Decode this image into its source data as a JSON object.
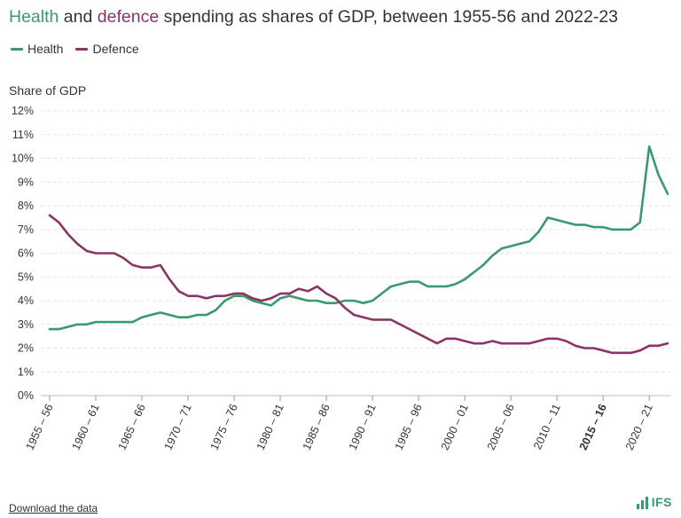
{
  "title": {
    "health_word": "Health",
    "and_word": "and",
    "defence_word": "defence",
    "rest": "spending as shares of GDP, between 1955-56 and 2022-23"
  },
  "legend": [
    {
      "label": "Health",
      "color": "#3a9a6e"
    },
    {
      "label": "Defence",
      "color": "#8b3566"
    }
  ],
  "download_label": "Download the data",
  "logo_text": "IFS",
  "chart_data": {
    "type": "line",
    "title": "Health and defence spending as shares of GDP, between 1955-56 and 2022-23",
    "xlabel": "",
    "ylabel": "Share of GDP",
    "ylim": [
      0,
      12
    ],
    "yticks": [
      "0%",
      "1%",
      "2%",
      "3%",
      "4%",
      "5%",
      "6%",
      "7%",
      "8%",
      "9%",
      "10%",
      "11%",
      "12%"
    ],
    "grid": true,
    "legend_position": "top-left",
    "x_start_year": 1955,
    "x_tick_labels": [
      "1955 – 56",
      "1960 – 61",
      "1965 – 66",
      "1970 – 71",
      "1975 – 76",
      "1980 – 81",
      "1985 – 86",
      "1990 – 91",
      "1995 – 96",
      "2000 – 01",
      "2005 – 06",
      "2010 – 11",
      "2015 – 16",
      "2020 – 21"
    ],
    "x_tick_bold": "2015 – 16",
    "series": [
      {
        "name": "Health",
        "color": "#3a9a6e",
        "values": [
          2.8,
          2.8,
          2.9,
          3.0,
          3.0,
          3.1,
          3.1,
          3.1,
          3.1,
          3.1,
          3.3,
          3.4,
          3.5,
          3.4,
          3.3,
          3.3,
          3.4,
          3.4,
          3.6,
          4.0,
          4.2,
          4.2,
          4.0,
          3.9,
          3.8,
          4.1,
          4.2,
          4.1,
          4.0,
          4.0,
          3.9,
          3.9,
          4.0,
          4.0,
          3.9,
          4.0,
          4.3,
          4.6,
          4.7,
          4.8,
          4.8,
          4.6,
          4.6,
          4.6,
          4.7,
          4.9,
          5.2,
          5.5,
          5.9,
          6.2,
          6.3,
          6.4,
          6.5,
          6.9,
          7.5,
          7.4,
          7.3,
          7.2,
          7.2,
          7.1,
          7.1,
          7.0,
          7.0,
          7.0,
          7.3,
          10.5,
          9.3,
          8.5
        ]
      },
      {
        "name": "Defence",
        "color": "#8b3566",
        "values": [
          7.6,
          7.3,
          6.8,
          6.4,
          6.1,
          6.0,
          6.0,
          6.0,
          5.8,
          5.5,
          5.4,
          5.4,
          5.5,
          4.9,
          4.4,
          4.2,
          4.2,
          4.1,
          4.2,
          4.2,
          4.3,
          4.3,
          4.1,
          4.0,
          4.1,
          4.3,
          4.3,
          4.5,
          4.4,
          4.6,
          4.3,
          4.1,
          3.7,
          3.4,
          3.3,
          3.2,
          3.2,
          3.2,
          3.0,
          2.8,
          2.6,
          2.4,
          2.2,
          2.4,
          2.4,
          2.3,
          2.2,
          2.2,
          2.3,
          2.2,
          2.2,
          2.2,
          2.2,
          2.3,
          2.4,
          2.4,
          2.3,
          2.1,
          2.0,
          2.0,
          1.9,
          1.8,
          1.8,
          1.8,
          1.9,
          2.1,
          2.1,
          2.2
        ]
      }
    ]
  }
}
